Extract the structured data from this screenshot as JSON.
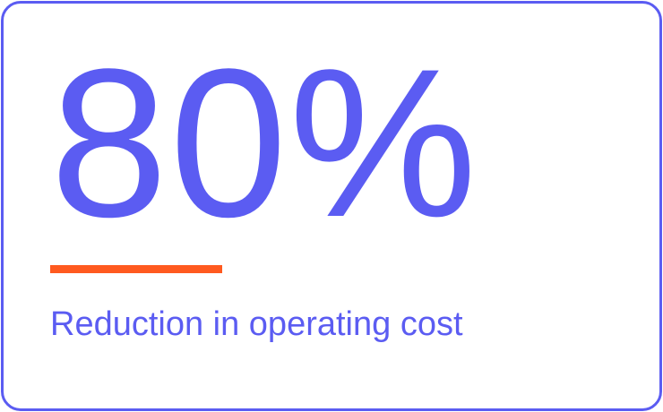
{
  "card": {
    "stat_value": "80%",
    "label": "Reduction in operating cost",
    "colors": {
      "accent": "#5B5CF2",
      "underline": "#FF5A1F",
      "background": "#FFFFFF"
    }
  }
}
